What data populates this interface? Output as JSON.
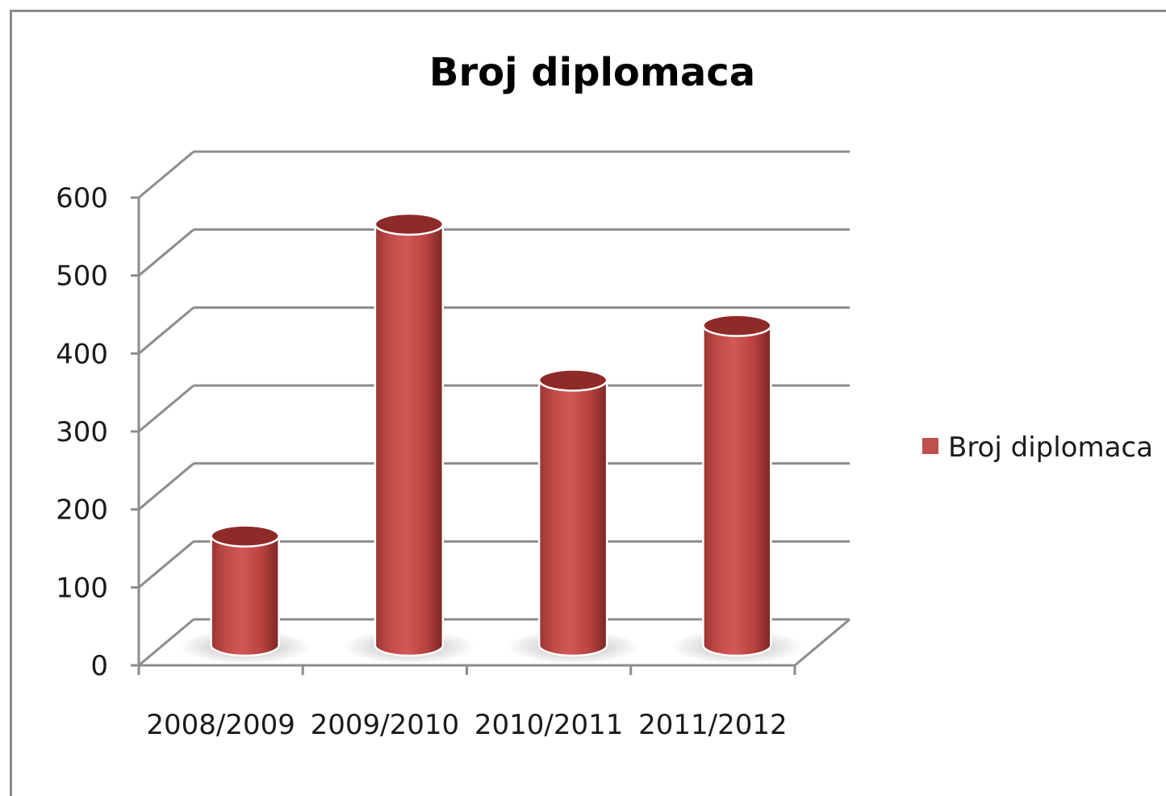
{
  "chart_data": {
    "type": "bar",
    "style": "3d-cylinder",
    "title": "Broj diplomaca",
    "categories": [
      "2008/2009",
      "2009/2010",
      "2010/2011",
      "2011/2012"
    ],
    "series": [
      {
        "name": "Broj diplomaca",
        "values": [
          140,
          540,
          340,
          410
        ],
        "color": "#c0504d"
      }
    ],
    "ylim": [
      0,
      600
    ],
    "yticks": [
      0,
      100,
      200,
      300,
      400,
      500,
      600
    ],
    "grid": true,
    "legend": "right"
  }
}
